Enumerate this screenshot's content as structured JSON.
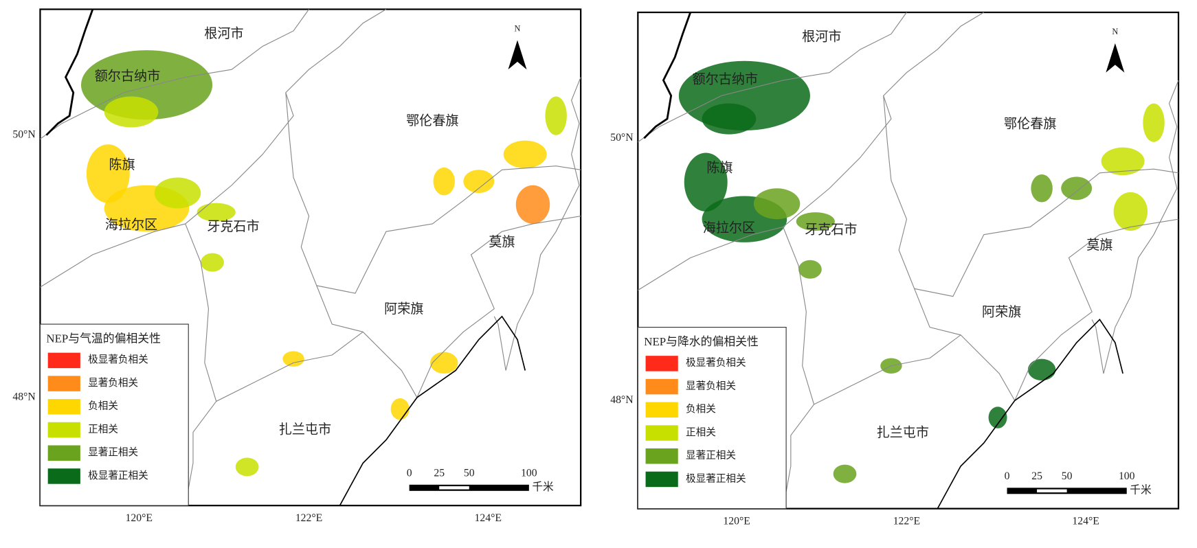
{
  "maps": [
    {
      "places": [
        "根河市",
        "额尔古纳市",
        "鄂伦春旗",
        "陈旗",
        "海拉尔区",
        "牙克石市",
        "莫旗",
        "阿荣旗",
        "扎兰屯市"
      ],
      "legend": {
        "title": "NEP与气温的偏相关性",
        "items": [
          {
            "label": "极显著负相关",
            "color": "#ff2a1a"
          },
          {
            "label": "显著负相关",
            "color": "#ff8c1a"
          },
          {
            "label": "负相关",
            "color": "#ffd700"
          },
          {
            "label": "正相关",
            "color": "#c8e000"
          },
          {
            "label": "显著正相关",
            "color": "#6aa31e"
          },
          {
            "label": "极显著正相关",
            "color": "#0a6b1a"
          }
        ]
      },
      "scale": {
        "ticks": [
          0,
          25,
          50,
          100
        ],
        "unit": "千米"
      },
      "lat_labels": [
        "50°N",
        "48°N"
      ],
      "lon_labels": [
        "120°E",
        "122°E",
        "124°E"
      ],
      "north": "N"
    },
    {
      "places": [
        "根河市",
        "额尔古纳市",
        "鄂伦春旗",
        "陈旗",
        "海拉尔区",
        "牙克石市",
        "莫旗",
        "阿荣旗",
        "扎兰屯市"
      ],
      "legend": {
        "title": "NEP与降水的偏相关性",
        "items": [
          {
            "label": "极显著负相关",
            "color": "#ff2a1a"
          },
          {
            "label": "显著负相关",
            "color": "#ff8c1a"
          },
          {
            "label": "负相关",
            "color": "#ffd700"
          },
          {
            "label": "正相关",
            "color": "#c8e000"
          },
          {
            "label": "显著正相关",
            "color": "#6aa31e"
          },
          {
            "label": "极显著正相关",
            "color": "#0a6b1a"
          }
        ]
      },
      "scale": {
        "ticks": [
          0,
          25,
          50,
          100
        ],
        "unit": "千米"
      },
      "lat_labels": [
        "50°N",
        "48°N"
      ],
      "lon_labels": [
        "120°E",
        "122°E",
        "124°E"
      ],
      "north": "N"
    }
  ]
}
